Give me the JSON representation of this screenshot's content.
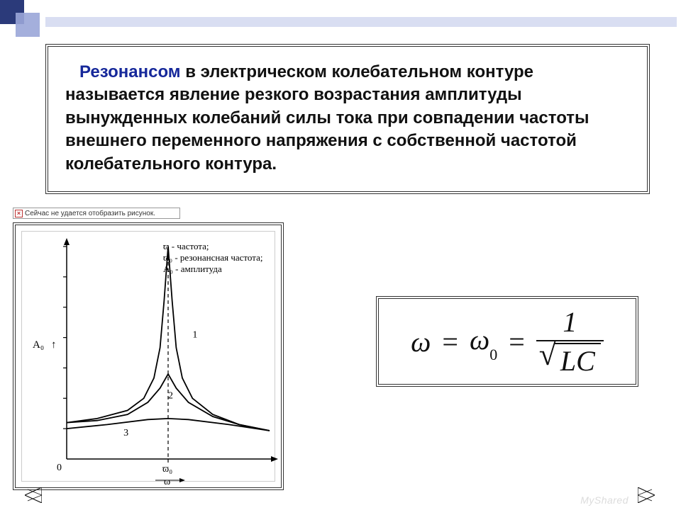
{
  "colors": {
    "accent_dark": "#2b3a7a",
    "accent_light": "#9aa6d8",
    "topbar": "#d9def2",
    "border": "#333333",
    "title_word": "#16289a",
    "text": "#111111",
    "watermark": "#dcdcdc"
  },
  "definition": {
    "first_word": "Резонансом",
    "rest": " в электрическом колебательном контуре называется явление резкого возрастания амплитуды вынужденных колебаний силы тока при совпадении частоты внешнего переменного напряжения с собственной частотой колебательного контура."
  },
  "broken_image_text": "Сейчас не удается отобразить рисунок.",
  "chart": {
    "type": "line",
    "legend_lines": [
      "ϖ - частота;",
      "ϖ₀ - резонансная частота;",
      "A₀ - амплитуда"
    ],
    "legend_fontsize": 13,
    "y_axis_label": "A₀",
    "x_axis_tick_label": "ϖ₀",
    "x_axis_symbol": "ϖ",
    "origin_label": "0",
    "curve_labels": [
      "1",
      "2",
      "3"
    ],
    "resonance_x": 0.5,
    "xlim": [
      0,
      1
    ],
    "ylim": [
      0,
      1.05
    ],
    "y_ticks": [
      0.15,
      0.3,
      0.45,
      0.6,
      0.75,
      0.9,
      1.05
    ],
    "series": [
      {
        "name": "1",
        "label_xy": [
          0.62,
          0.6
        ],
        "points": [
          [
            0.0,
            0.18
          ],
          [
            0.15,
            0.2
          ],
          [
            0.3,
            0.24
          ],
          [
            0.38,
            0.3
          ],
          [
            0.43,
            0.4
          ],
          [
            0.46,
            0.55
          ],
          [
            0.48,
            0.78
          ],
          [
            0.5,
            1.05
          ],
          [
            0.52,
            0.78
          ],
          [
            0.54,
            0.55
          ],
          [
            0.57,
            0.4
          ],
          [
            0.62,
            0.3
          ],
          [
            0.72,
            0.22
          ],
          [
            0.85,
            0.17
          ],
          [
            1.0,
            0.14
          ]
        ]
      },
      {
        "name": "2",
        "label_xy": [
          0.5,
          0.3
        ],
        "points": [
          [
            0.0,
            0.18
          ],
          [
            0.15,
            0.19
          ],
          [
            0.3,
            0.22
          ],
          [
            0.4,
            0.28
          ],
          [
            0.46,
            0.35
          ],
          [
            0.5,
            0.42
          ],
          [
            0.54,
            0.35
          ],
          [
            0.6,
            0.28
          ],
          [
            0.72,
            0.21
          ],
          [
            0.85,
            0.17
          ],
          [
            1.0,
            0.14
          ]
        ]
      },
      {
        "name": "3",
        "label_xy": [
          0.28,
          0.115
        ],
        "points": [
          [
            0.0,
            0.15
          ],
          [
            0.2,
            0.17
          ],
          [
            0.4,
            0.195
          ],
          [
            0.5,
            0.2
          ],
          [
            0.6,
            0.195
          ],
          [
            0.8,
            0.17
          ],
          [
            1.0,
            0.14
          ]
        ]
      }
    ],
    "line_color": "#000000",
    "line_width": 1.8,
    "dash_color": "#000000",
    "tick_len": 5,
    "font_family": "serif"
  },
  "formula": {
    "lhs_sym": "ω",
    "eq": "=",
    "mid_sym": "ω",
    "mid_sub": "0",
    "numerator": "1",
    "denom_sqrt_of": "LC"
  },
  "watermark": "MyShared"
}
